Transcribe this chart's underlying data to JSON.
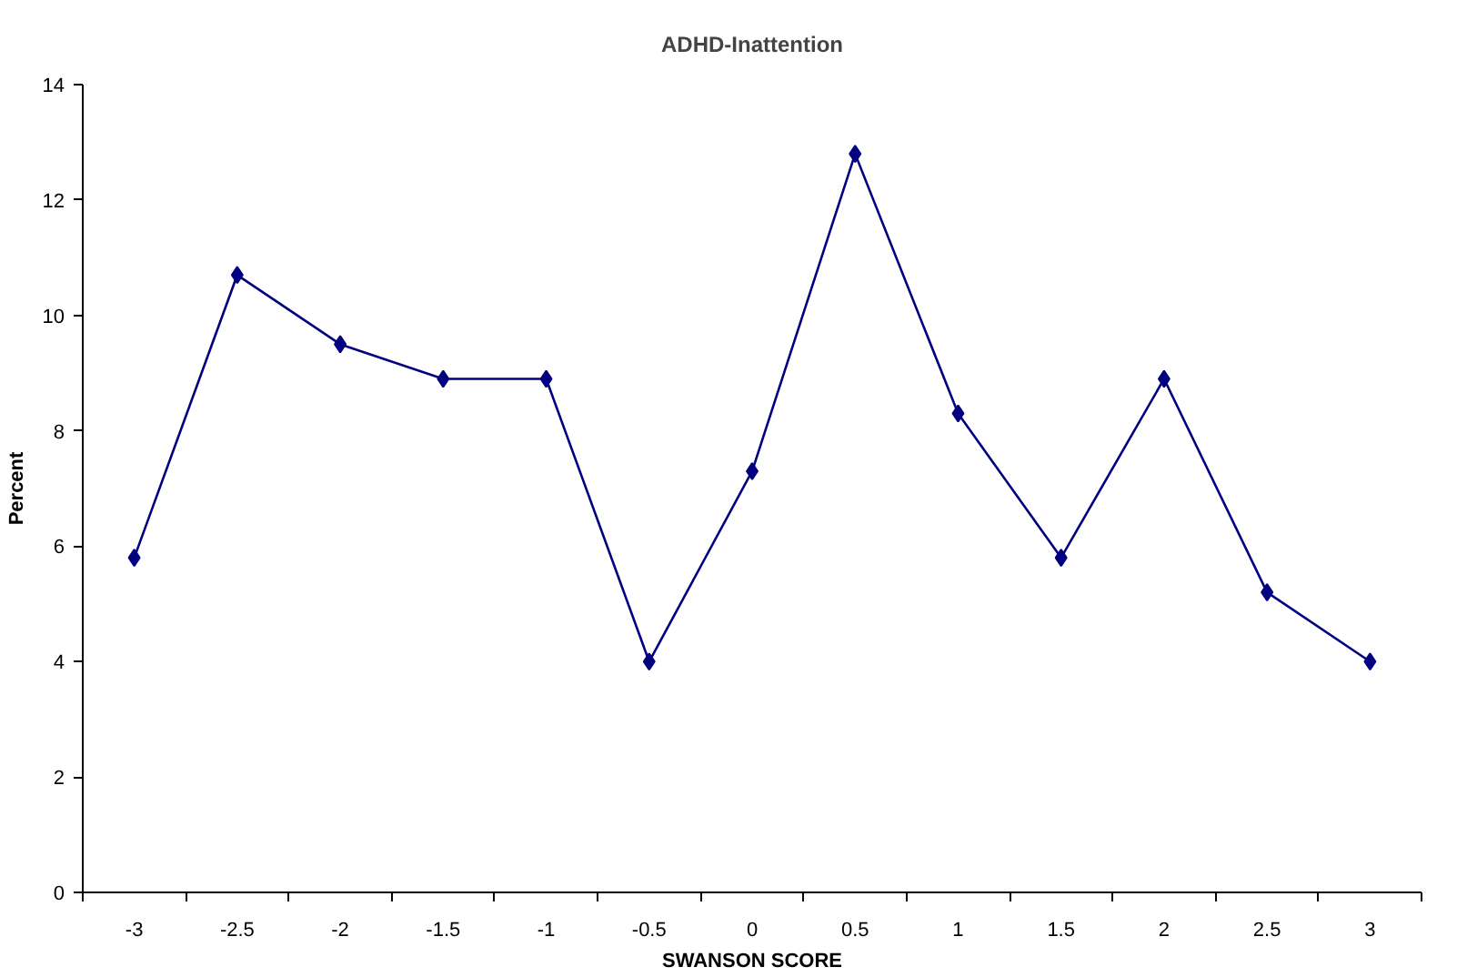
{
  "chart_data": {
    "type": "line",
    "title": "ADHD-Inattention",
    "xlabel": "SWANSON SCORE",
    "ylabel": "Percent",
    "categories": [
      "-3",
      "-2.5",
      "-2",
      "-1.5",
      "-1",
      "-0.5",
      "0",
      "0.5",
      "1",
      "1.5",
      "2",
      "2.5",
      "3"
    ],
    "series": [
      {
        "color": "#000080",
        "values": [
          5.8,
          10.7,
          9.5,
          8.9,
          8.9,
          4.0,
          7.3,
          12.8,
          8.3,
          5.8,
          8.9,
          5.2,
          4.0
        ]
      }
    ],
    "ylim": [
      0,
      14
    ],
    "yticks": [
      0,
      2,
      4,
      6,
      8,
      10,
      12,
      14
    ],
    "grid": false,
    "marker": "diamond",
    "line_style": "solid"
  }
}
